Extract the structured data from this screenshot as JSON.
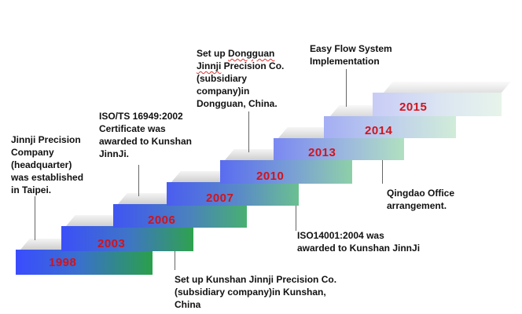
{
  "colors": {
    "year_text": "#d0141c",
    "note_text": "#111111",
    "leader_line": "#666666"
  },
  "steps": [
    {
      "year": "1998",
      "note": "Jinnji Precision\nCompany\n(headquarter)\nwas established\nin Taipei."
    },
    {
      "year": "2003",
      "note": "Set up Kunshan Jinnji Precision Co.\n(subsidiary company)in Kunshan,\nChina"
    },
    {
      "year": "2006",
      "note": "ISO/TS 16949:2002\nCertificate was\nawarded to Kunshan\nJinnJi."
    },
    {
      "year": "2007",
      "note": "ISO14001:2004 was\nawarded to Kunshan JinnJi"
    },
    {
      "year": "2010",
      "note_parts": {
        "l1a": "Set up ",
        "l1b": "Dongguan",
        "l2": "Jinnji",
        "l2b": " Precision Co.",
        "l3": "(subsidiary",
        "l4": "company)in",
        "l5": "Dongguan, China."
      }
    },
    {
      "year": "2013",
      "note": "Qingdao Office\narrangement."
    },
    {
      "year": "2014",
      "note": ""
    },
    {
      "year": "2015",
      "note": "Easy Flow System\nImplementation"
    }
  ]
}
